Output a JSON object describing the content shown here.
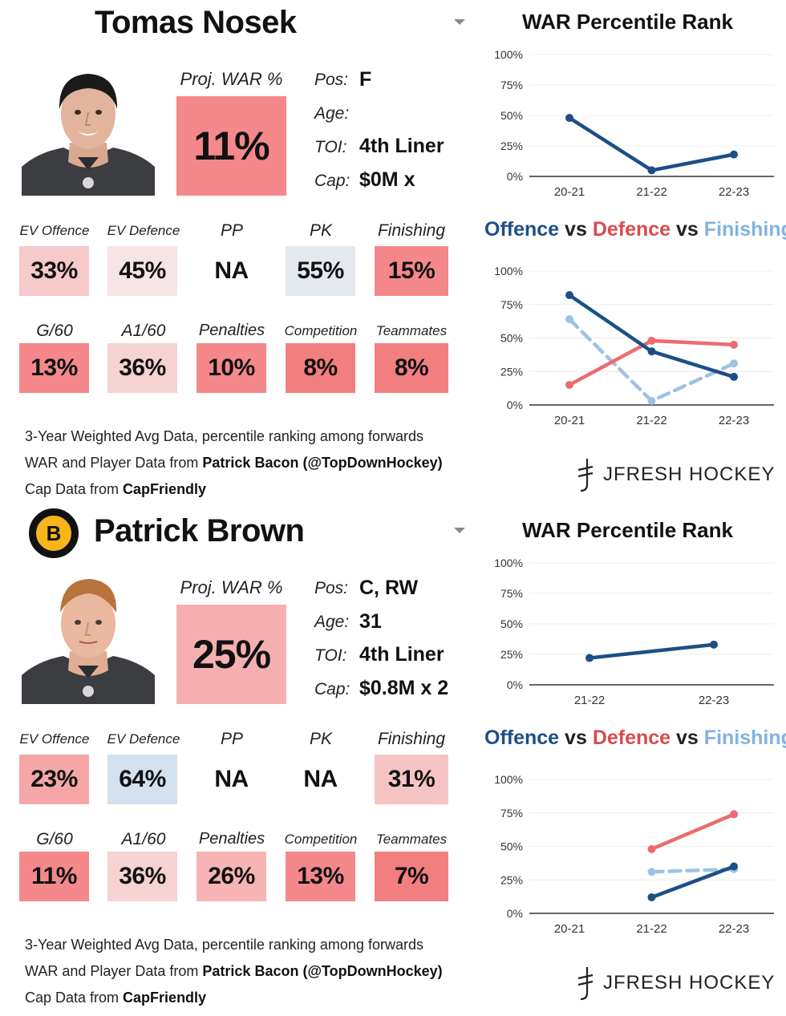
{
  "players": [
    {
      "name": "Tomas Nosek",
      "proj_war_label": "Proj. WAR %",
      "proj_war_value": "11%",
      "proj_war_color": "#f4888a",
      "info": [
        {
          "label": "Pos:",
          "value": "F"
        },
        {
          "label": "Age:",
          "value": ""
        },
        {
          "label": "TOI:",
          "value": "4th Liner"
        },
        {
          "label": "Cap:",
          "value": "$0M x"
        }
      ],
      "stats_row1": [
        {
          "label": "EV Offence",
          "value": "33%",
          "color": "#f6c9ca"
        },
        {
          "label": "EV Defence",
          "value": "45%",
          "color": "#f7e4e5"
        },
        {
          "label": "PP",
          "value": "NA",
          "color": "#ffffff"
        },
        {
          "label": "PK",
          "value": "55%",
          "color": "#e3e9ef"
        },
        {
          "label": "Finishing",
          "value": "15%",
          "color": "#f4888a"
        }
      ],
      "stats_row2": [
        {
          "label": "G/60",
          "value": "13%",
          "color": "#f4888a"
        },
        {
          "label": "A1/60",
          "value": "36%",
          "color": "#f6d2d3"
        },
        {
          "label": "Penalties",
          "value": "10%",
          "color": "#f4888a"
        },
        {
          "label": "Competition",
          "value": "8%",
          "color": "#f37e80"
        },
        {
          "label": "Teammates",
          "value": "8%",
          "color": "#f37e80"
        }
      ],
      "footnotes": {
        "line1": "3-Year Weighted Avg Data, percentile ranking among forwards",
        "line2_prefix": "WAR and Player Data from ",
        "line2_bold": "Patrick Bacon (@TopDownHockey)",
        "line3_prefix": "Cap Data from ",
        "line3_bold": "CapFriendly"
      },
      "brand": "JFRESH HOCKEY"
    },
    {
      "name": "Patrick Brown",
      "team_logo_letter": "B",
      "proj_war_label": "Proj. WAR %",
      "proj_war_value": "25%",
      "proj_war_color": "#f6b0b2",
      "info": [
        {
          "label": "Pos:",
          "value": "C, RW"
        },
        {
          "label": "Age:",
          "value": "31"
        },
        {
          "label": "TOI:",
          "value": "4th Liner"
        },
        {
          "label": "Cap:",
          "value": "$0.8M x 2"
        }
      ],
      "stats_row1": [
        {
          "label": "EV Offence",
          "value": "23%",
          "color": "#f5a7a8"
        },
        {
          "label": "EV Defence",
          "value": "64%",
          "color": "#d3e0ee"
        },
        {
          "label": "PP",
          "value": "NA",
          "color": "#ffffff"
        },
        {
          "label": "PK",
          "value": "NA",
          "color": "#ffffff"
        },
        {
          "label": "Finishing",
          "value": "31%",
          "color": "#f6c4c5"
        }
      ],
      "stats_row2": [
        {
          "label": "G/60",
          "value": "11%",
          "color": "#f4888a"
        },
        {
          "label": "A1/60",
          "value": "36%",
          "color": "#f6d2d3"
        },
        {
          "label": "Penalties",
          "value": "26%",
          "color": "#f6b4b5"
        },
        {
          "label": "Competition",
          "value": "13%",
          "color": "#f4888a"
        },
        {
          "label": "Teammates",
          "value": "7%",
          "color": "#f37e80"
        }
      ],
      "footnotes": {
        "line1": "3-Year Weighted Avg Data, percentile ranking among forwards",
        "line2_prefix": "WAR and Player Data from ",
        "line2_bold": "Patrick Bacon (@TopDownHockey)",
        "line3_prefix": "Cap Data from ",
        "line3_bold": "CapFriendly"
      },
      "brand": "JFRESH HOCKEY"
    }
  ],
  "chart_titles": {
    "war": "WAR Percentile Rank",
    "ovd_offence": "Offence",
    "ovd_vs": "vs",
    "ovd_defence": "Defence",
    "ovd_finishing": "Finishing"
  },
  "colors": {
    "offence": "#1d4f86",
    "defence": "#ec6b6f",
    "finishing": "#9cc3e6",
    "war_line": "#1d4f86"
  },
  "chart_data": [
    {
      "type": "line",
      "title": "WAR Percentile Rank",
      "player": "Tomas Nosek",
      "categories": [
        "20-21",
        "21-22",
        "22-23"
      ],
      "series": [
        {
          "name": "WAR",
          "values": [
            48,
            5,
            18
          ]
        }
      ],
      "yticks": [
        "0%",
        "25%",
        "50%",
        "75%",
        "100%"
      ],
      "ylim": [
        0,
        100
      ]
    },
    {
      "type": "line",
      "title": "Offence vs Defence vs Finishing",
      "player": "Tomas Nosek",
      "categories": [
        "20-21",
        "21-22",
        "22-23"
      ],
      "series": [
        {
          "name": "Offence",
          "values": [
            82,
            40,
            21
          ]
        },
        {
          "name": "Defence",
          "values": [
            15,
            48,
            45
          ]
        },
        {
          "name": "Finishing",
          "values": [
            64,
            3,
            31
          ],
          "dashed": true
        }
      ],
      "yticks": [
        "0%",
        "25%",
        "50%",
        "75%",
        "100%"
      ],
      "ylim": [
        0,
        100
      ]
    },
    {
      "type": "line",
      "title": "WAR Percentile Rank",
      "player": "Patrick Brown",
      "categories": [
        "21-22",
        "22-23"
      ],
      "series": [
        {
          "name": "WAR",
          "values": [
            22,
            33
          ]
        }
      ],
      "yticks": [
        "0%",
        "25%",
        "50%",
        "75%",
        "100%"
      ],
      "ylim": [
        0,
        100
      ]
    },
    {
      "type": "line",
      "title": "Offence vs Defence vs Finishing",
      "player": "Patrick Brown",
      "categories": [
        "20-21",
        "21-22",
        "22-23"
      ],
      "series": [
        {
          "name": "Offence",
          "values": [
            null,
            12,
            35
          ]
        },
        {
          "name": "Defence",
          "values": [
            null,
            48,
            74
          ]
        },
        {
          "name": "Finishing",
          "values": [
            null,
            31,
            33
          ],
          "dashed": true
        }
      ],
      "yticks": [
        "0%",
        "25%",
        "50%",
        "75%",
        "100%"
      ],
      "ylim": [
        0,
        100
      ]
    }
  ]
}
